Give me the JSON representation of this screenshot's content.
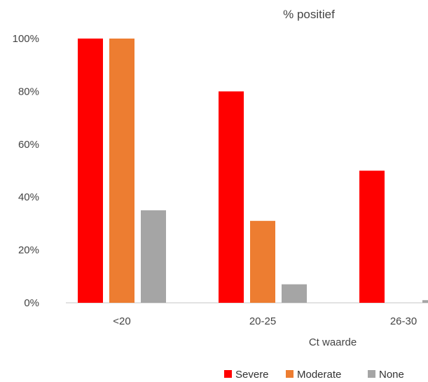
{
  "chart_data": {
    "type": "bar",
    "title": "% positief",
    "xlabel": "Ct waarde",
    "ylabel": "",
    "categories": [
      "<20",
      "20-25",
      "26-30"
    ],
    "ylim": [
      0,
      100
    ],
    "yticks": [
      "0%",
      "20%",
      "40%",
      "60%",
      "80%",
      "100%"
    ],
    "grid": false,
    "legend": "bottom-right",
    "series": [
      {
        "name": "Severe",
        "color": "#ff0000",
        "values": [
          100,
          80,
          50
        ]
      },
      {
        "name": "Moderate",
        "color": "#ed7d31",
        "values": [
          100,
          31,
          0
        ]
      },
      {
        "name": "None",
        "color": "#a5a5a5",
        "values": [
          35,
          7,
          1
        ]
      }
    ]
  }
}
